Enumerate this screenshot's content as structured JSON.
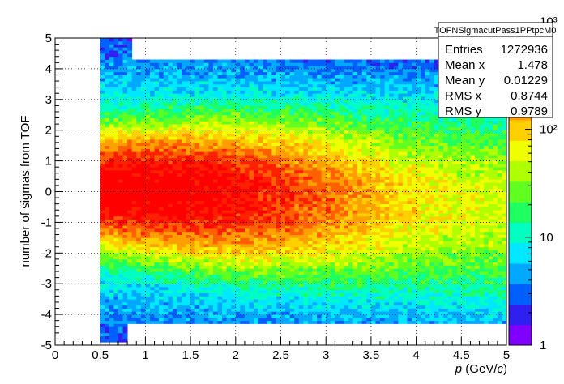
{
  "chart_data": {
    "type": "heatmap",
    "title": "",
    "xlabel": "p (GeV/c)",
    "xlabel_parts": {
      "var": "p",
      "unit": " (GeV/",
      "unit_var": "c",
      "close": ")"
    },
    "ylabel": "number of sigmas from TOF",
    "xlim": [
      0,
      5
    ],
    "ylim": [
      -5,
      5
    ],
    "x_ticks": [
      "0",
      "0.5",
      "1",
      "1.5",
      "2",
      "2.5",
      "3",
      "3.5",
      "4",
      "4.5",
      "5"
    ],
    "y_ticks": [
      "-5",
      "-4",
      "-3",
      "-2",
      "-1",
      "0",
      "1",
      "2",
      "3",
      "4",
      "5"
    ],
    "grid": true,
    "z_scale": "log",
    "z_range": [
      1,
      700
    ],
    "z_ticks": [
      "1",
      "10",
      "10²",
      "10³"
    ],
    "x_bin_width": 0.05,
    "y_bin_width": 0.1,
    "x_data_start": 0.5,
    "stats_box": {
      "name": "TOFNSigmacutPass1PPtpcM0",
      "rows": [
        {
          "label": "Entries",
          "value": "1272936"
        },
        {
          "label": "Mean x",
          "value": "1.478"
        },
        {
          "label": "Mean y",
          "value": "0.01229"
        },
        {
          "label": "RMS x",
          "value": "0.8744"
        },
        {
          "label": "RMS y",
          "value": "0.9789"
        }
      ]
    }
  },
  "colors": {
    "palette": [
      "#8000ff",
      "#3020f0",
      "#0060ff",
      "#00a8ff",
      "#00e8ff",
      "#00ffc0",
      "#20ff60",
      "#60ff20",
      "#b0ff00",
      "#f0ff00",
      "#ffd000",
      "#ffa000",
      "#ff6000",
      "#ff2000",
      "#ff0000"
    ]
  }
}
